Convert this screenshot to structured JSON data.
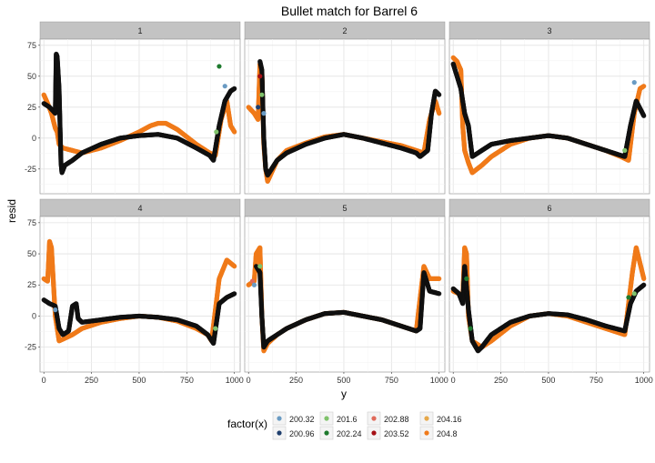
{
  "chart_data": {
    "type": "scatter",
    "title": "Bullet match for Barrel 6",
    "xlabel": "y",
    "ylabel": "resid",
    "xlim": [
      -20,
      1030
    ],
    "ylim": [
      -45,
      80
    ],
    "xticks": [
      0,
      250,
      500,
      750,
      1000
    ],
    "yticks": [
      -25,
      0,
      25,
      50,
      75
    ],
    "grid": true,
    "legend": {
      "title": "factor(x)",
      "placement": "bottom",
      "entries": [
        {
          "label": "200.32",
          "color": "#6a9bc3"
        },
        {
          "label": "200.96",
          "color": "#1f3f6e"
        },
        {
          "label": "201.6",
          "color": "#7fc26b"
        },
        {
          "label": "202.24",
          "color": "#1e7a2e"
        },
        {
          "label": "202.88",
          "color": "#e06a5a"
        },
        {
          "label": "203.52",
          "color": "#a50f15"
        },
        {
          "label": "204.16",
          "color": "#e6a84a"
        },
        {
          "label": "204.8",
          "color": "#f07a1a"
        }
      ]
    },
    "panels": [
      {
        "label": "1",
        "black": [
          [
            0,
            28
          ],
          [
            30,
            25
          ],
          [
            60,
            20
          ],
          [
            65,
            68
          ],
          [
            70,
            66
          ],
          [
            80,
            40
          ],
          [
            90,
            -20
          ],
          [
            95,
            -28
          ],
          [
            110,
            -22
          ],
          [
            150,
            -18
          ],
          [
            200,
            -12
          ],
          [
            300,
            -5
          ],
          [
            400,
            0
          ],
          [
            500,
            2
          ],
          [
            600,
            3
          ],
          [
            700,
            0
          ],
          [
            800,
            -8
          ],
          [
            870,
            -14
          ],
          [
            890,
            -18
          ],
          [
            920,
            10
          ],
          [
            950,
            30
          ],
          [
            980,
            38
          ],
          [
            1000,
            40
          ]
        ],
        "orange": [
          [
            0,
            35
          ],
          [
            20,
            28
          ],
          [
            40,
            20
          ],
          [
            60,
            8
          ],
          [
            70,
            5
          ],
          [
            80,
            -5
          ],
          [
            100,
            -8
          ],
          [
            150,
            -10
          ],
          [
            200,
            -12
          ],
          [
            300,
            -8
          ],
          [
            400,
            -2
          ],
          [
            500,
            5
          ],
          [
            560,
            10
          ],
          [
            600,
            12
          ],
          [
            640,
            12
          ],
          [
            700,
            7
          ],
          [
            800,
            -5
          ],
          [
            870,
            -12
          ],
          [
            900,
            -14
          ],
          [
            930,
            15
          ],
          [
            960,
            30
          ],
          [
            980,
            10
          ],
          [
            1000,
            5
          ]
        ],
        "extra": [
          [
            920,
            58,
            "#1e7a2e"
          ],
          [
            905,
            5,
            "#7fc26b"
          ],
          [
            950,
            42,
            "#6a9bc3"
          ]
        ]
      },
      {
        "label": "2",
        "black": [
          [
            60,
            62
          ],
          [
            70,
            55
          ],
          [
            80,
            0
          ],
          [
            90,
            -25
          ],
          [
            100,
            -30
          ],
          [
            150,
            -18
          ],
          [
            200,
            -12
          ],
          [
            300,
            -5
          ],
          [
            400,
            0
          ],
          [
            500,
            3
          ],
          [
            600,
            0
          ],
          [
            700,
            -4
          ],
          [
            800,
            -8
          ],
          [
            880,
            -12
          ],
          [
            900,
            -15
          ],
          [
            940,
            -10
          ],
          [
            960,
            20
          ],
          [
            980,
            38
          ],
          [
            1000,
            35
          ]
        ],
        "orange": [
          [
            0,
            25
          ],
          [
            30,
            20
          ],
          [
            50,
            15
          ],
          [
            60,
            60
          ],
          [
            70,
            55
          ],
          [
            80,
            -5
          ],
          [
            90,
            -25
          ],
          [
            100,
            -35
          ],
          [
            150,
            -18
          ],
          [
            200,
            -10
          ],
          [
            300,
            -4
          ],
          [
            400,
            1
          ],
          [
            500,
            3
          ],
          [
            600,
            0
          ],
          [
            700,
            -3
          ],
          [
            800,
            -6
          ],
          [
            880,
            -10
          ],
          [
            920,
            -12
          ],
          [
            950,
            15
          ],
          [
            980,
            30
          ],
          [
            1000,
            20
          ]
        ],
        "extra": [
          [
            60,
            50,
            "#a50f15"
          ],
          [
            70,
            35,
            "#7fc26b"
          ],
          [
            50,
            25,
            "#1f3f6e"
          ],
          [
            80,
            20,
            "#6a9bc3"
          ]
        ]
      },
      {
        "label": "3",
        "black": [
          [
            0,
            60
          ],
          [
            20,
            50
          ],
          [
            40,
            40
          ],
          [
            60,
            20
          ],
          [
            80,
            10
          ],
          [
            100,
            -15
          ],
          [
            150,
            -10
          ],
          [
            200,
            -5
          ],
          [
            300,
            -2
          ],
          [
            400,
            0
          ],
          [
            500,
            2
          ],
          [
            600,
            0
          ],
          [
            700,
            -5
          ],
          [
            800,
            -10
          ],
          [
            900,
            -15
          ],
          [
            930,
            10
          ],
          [
            960,
            30
          ],
          [
            1000,
            18
          ]
        ],
        "orange": [
          [
            0,
            65
          ],
          [
            20,
            62
          ],
          [
            40,
            55
          ],
          [
            50,
            10
          ],
          [
            60,
            -10
          ],
          [
            80,
            -20
          ],
          [
            100,
            -28
          ],
          [
            150,
            -22
          ],
          [
            200,
            -15
          ],
          [
            300,
            -5
          ],
          [
            400,
            0
          ],
          [
            500,
            2
          ],
          [
            600,
            0
          ],
          [
            700,
            -5
          ],
          [
            800,
            -10
          ],
          [
            880,
            -15
          ],
          [
            920,
            -18
          ],
          [
            950,
            20
          ],
          [
            980,
            40
          ],
          [
            1000,
            42
          ]
        ],
        "extra": [
          [
            950,
            45,
            "#6a9bc3"
          ],
          [
            900,
            -10,
            "#7fc26b"
          ]
        ]
      },
      {
        "label": "4",
        "black": [
          [
            0,
            13
          ],
          [
            30,
            10
          ],
          [
            60,
            8
          ],
          [
            80,
            -10
          ],
          [
            100,
            -15
          ],
          [
            130,
            -12
          ],
          [
            150,
            8
          ],
          [
            170,
            10
          ],
          [
            180,
            -2
          ],
          [
            200,
            -5
          ],
          [
            300,
            -3
          ],
          [
            400,
            -1
          ],
          [
            500,
            0
          ],
          [
            600,
            -1
          ],
          [
            700,
            -3
          ],
          [
            800,
            -8
          ],
          [
            860,
            -15
          ],
          [
            890,
            -22
          ],
          [
            920,
            10
          ],
          [
            960,
            15
          ],
          [
            1000,
            18
          ]
        ],
        "orange": [
          [
            0,
            30
          ],
          [
            20,
            28
          ],
          [
            30,
            60
          ],
          [
            40,
            55
          ],
          [
            60,
            0
          ],
          [
            80,
            -20
          ],
          [
            150,
            -15
          ],
          [
            200,
            -10
          ],
          [
            300,
            -5
          ],
          [
            400,
            -2
          ],
          [
            500,
            0
          ],
          [
            600,
            -1
          ],
          [
            700,
            -4
          ],
          [
            800,
            -10
          ],
          [
            860,
            -15
          ],
          [
            880,
            -20
          ],
          [
            920,
            30
          ],
          [
            960,
            45
          ],
          [
            1000,
            40
          ]
        ],
        "extra": [
          [
            60,
            5,
            "#6a9bc3"
          ],
          [
            900,
            -10,
            "#7fc26b"
          ]
        ]
      },
      {
        "label": "5",
        "black": [
          [
            40,
            40
          ],
          [
            60,
            35
          ],
          [
            70,
            0
          ],
          [
            80,
            -25
          ],
          [
            100,
            -20
          ],
          [
            150,
            -15
          ],
          [
            200,
            -10
          ],
          [
            300,
            -3
          ],
          [
            400,
            2
          ],
          [
            500,
            3
          ],
          [
            600,
            0
          ],
          [
            700,
            -3
          ],
          [
            800,
            -8
          ],
          [
            880,
            -12
          ],
          [
            900,
            -10
          ],
          [
            920,
            35
          ],
          [
            950,
            20
          ],
          [
            1000,
            18
          ]
        ],
        "orange": [
          [
            0,
            25
          ],
          [
            30,
            28
          ],
          [
            40,
            50
          ],
          [
            60,
            55
          ],
          [
            70,
            0
          ],
          [
            80,
            -28
          ],
          [
            100,
            -22
          ],
          [
            150,
            -15
          ],
          [
            200,
            -10
          ],
          [
            300,
            -3
          ],
          [
            400,
            2
          ],
          [
            500,
            3
          ],
          [
            600,
            0
          ],
          [
            700,
            -3
          ],
          [
            800,
            -8
          ],
          [
            880,
            -12
          ],
          [
            920,
            40
          ],
          [
            950,
            30
          ],
          [
            1000,
            30
          ]
        ],
        "extra": [
          [
            20,
            28,
            "#e06a5a"
          ],
          [
            30,
            25,
            "#6a9bc3"
          ],
          [
            60,
            40,
            "#7fc26b"
          ]
        ]
      },
      {
        "label": "6",
        "black": [
          [
            0,
            22
          ],
          [
            30,
            18
          ],
          [
            50,
            10
          ],
          [
            60,
            40
          ],
          [
            80,
            5
          ],
          [
            100,
            -20
          ],
          [
            130,
            -28
          ],
          [
            150,
            -25
          ],
          [
            200,
            -15
          ],
          [
            300,
            -5
          ],
          [
            400,
            0
          ],
          [
            500,
            2
          ],
          [
            600,
            1
          ],
          [
            700,
            -3
          ],
          [
            800,
            -8
          ],
          [
            900,
            -12
          ],
          [
            930,
            10
          ],
          [
            960,
            20
          ],
          [
            1000,
            25
          ]
        ],
        "orange": [
          [
            0,
            20
          ],
          [
            30,
            18
          ],
          [
            50,
            15
          ],
          [
            60,
            55
          ],
          [
            70,
            50
          ],
          [
            80,
            0
          ],
          [
            100,
            -20
          ],
          [
            150,
            -25
          ],
          [
            200,
            -20
          ],
          [
            300,
            -8
          ],
          [
            400,
            0
          ],
          [
            500,
            2
          ],
          [
            600,
            0
          ],
          [
            700,
            -5
          ],
          [
            800,
            -10
          ],
          [
            900,
            -15
          ],
          [
            940,
            35
          ],
          [
            960,
            55
          ],
          [
            1000,
            30
          ]
        ],
        "extra": [
          [
            70,
            30,
            "#1e7a2e"
          ],
          [
            90,
            -10,
            "#1e7a2e"
          ],
          [
            920,
            15,
            "#1e7a2e"
          ],
          [
            950,
            18,
            "#7fc26b"
          ]
        ]
      }
    ]
  }
}
